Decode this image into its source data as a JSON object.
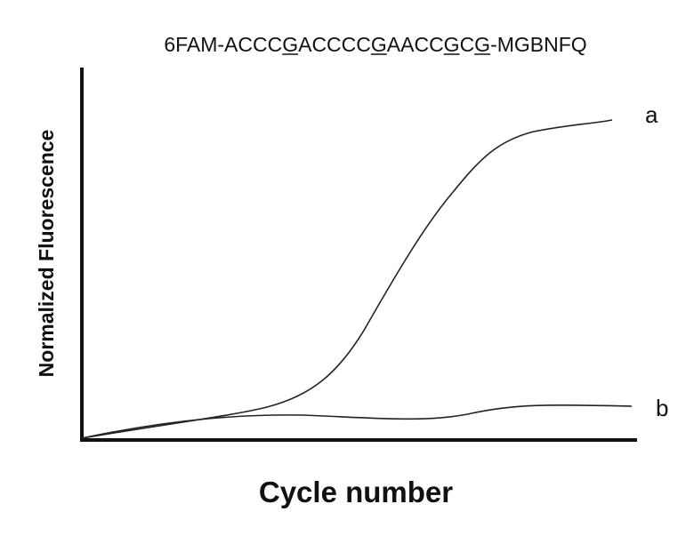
{
  "title": "6FAM-ACCCGACCCCGAACCGCG-MGBNFQ",
  "y_axis_label": "Normalized Fluorescence",
  "x_axis_label": "Cycle number",
  "curves": [
    {
      "label": "a"
    },
    {
      "label": "b"
    }
  ]
}
